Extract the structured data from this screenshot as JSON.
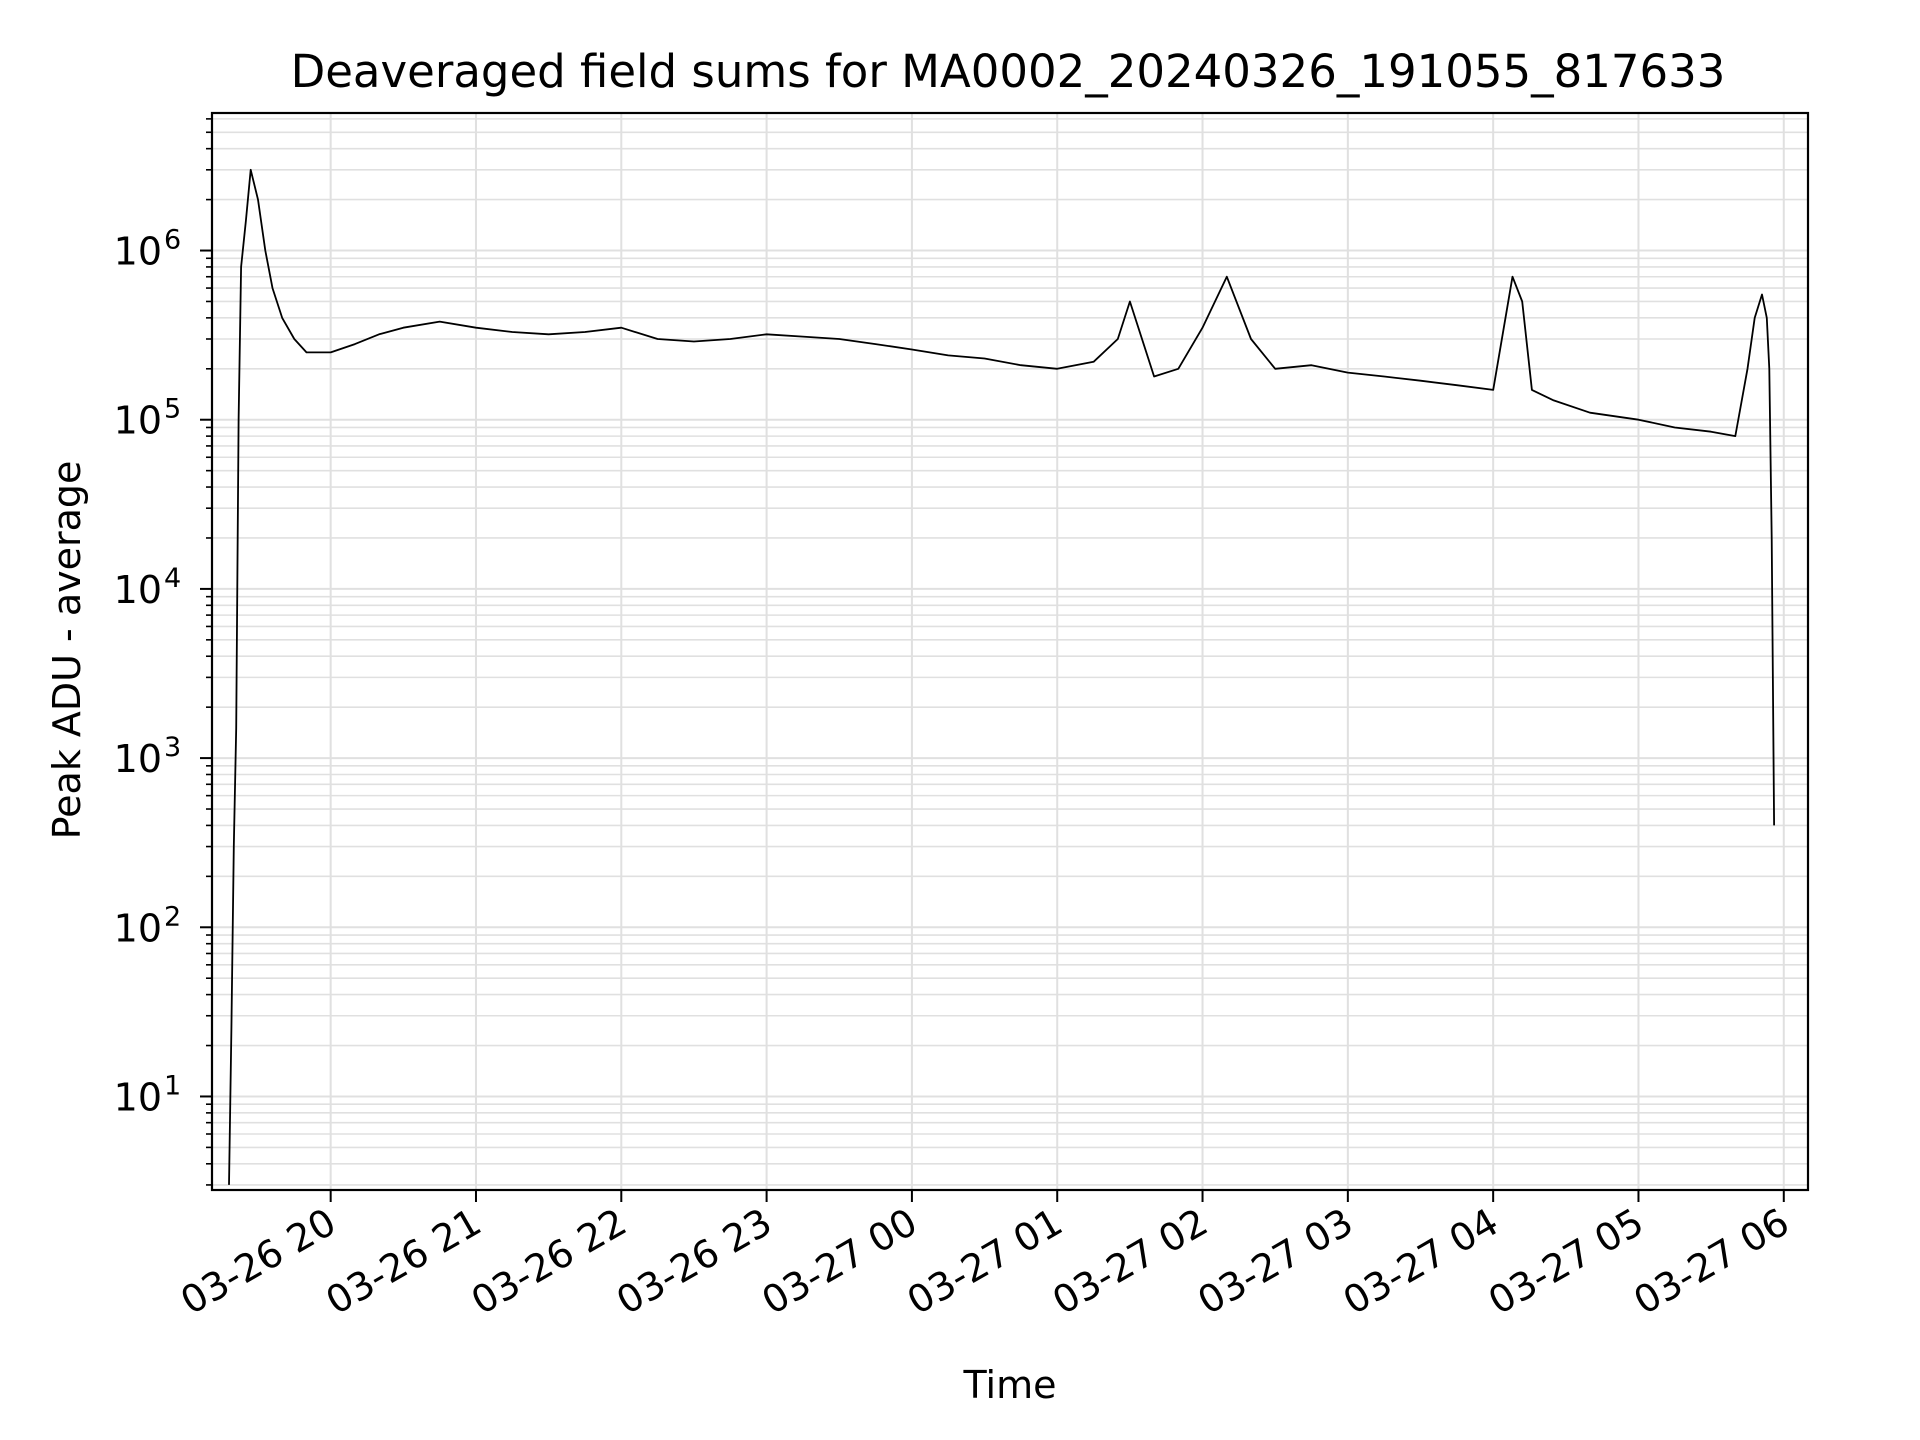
{
  "chart_data": {
    "type": "line",
    "title": "Deaveraged field sums for MA0002_20240326_191055_817633",
    "xlabel": "Time",
    "ylabel": "Peak ADU - average",
    "x_scale": "time",
    "y_scale": "log",
    "xlim": [
      "2024-03-26 19:11",
      "2024-03-27 06:10"
    ],
    "ylim": [
      2.8,
      6500000
    ],
    "x_ticks": [
      "03-26 20",
      "03-26 21",
      "03-26 22",
      "03-26 23",
      "03-27 00",
      "03-27 01",
      "03-27 02",
      "03-27 03",
      "03-27 04",
      "03-27 05",
      "03-27 06"
    ],
    "y_ticks": [
      {
        "base": "10",
        "exp": "1"
      },
      {
        "base": "10",
        "exp": "2"
      },
      {
        "base": "10",
        "exp": "3"
      },
      {
        "base": "10",
        "exp": "4"
      },
      {
        "base": "10",
        "exp": "5"
      },
      {
        "base": "10",
        "exp": "6"
      }
    ],
    "grid": true,
    "line_color": "#000000",
    "grid_color": "#e0e0e0",
    "series": [
      {
        "x": [
          "2024-03-26 19:18",
          "2024-03-26 19:19",
          "2024-03-26 19:20",
          "2024-03-26 19:21",
          "2024-03-26 19:22",
          "2024-03-26 19:23",
          "2024-03-26 19:25",
          "2024-03-26 19:27",
          "2024-03-26 19:30",
          "2024-03-26 19:33",
          "2024-03-26 19:36",
          "2024-03-26 19:40",
          "2024-03-26 19:45",
          "2024-03-26 19:50",
          "2024-03-26 20:00",
          "2024-03-26 20:10",
          "2024-03-26 20:20",
          "2024-03-26 20:30",
          "2024-03-26 20:45",
          "2024-03-26 21:00",
          "2024-03-26 21:15",
          "2024-03-26 21:30",
          "2024-03-26 21:45",
          "2024-03-26 22:00",
          "2024-03-26 22:15",
          "2024-03-26 22:30",
          "2024-03-26 22:45",
          "2024-03-26 23:00",
          "2024-03-26 23:15",
          "2024-03-26 23:30",
          "2024-03-26 23:45",
          "2024-03-27 00:00",
          "2024-03-27 00:15",
          "2024-03-27 00:30",
          "2024-03-27 00:45",
          "2024-03-27 01:00",
          "2024-03-27 01:15",
          "2024-03-27 01:25",
          "2024-03-27 01:30",
          "2024-03-27 01:40",
          "2024-03-27 01:50",
          "2024-03-27 02:00",
          "2024-03-27 02:10",
          "2024-03-27 02:20",
          "2024-03-27 02:30",
          "2024-03-27 02:45",
          "2024-03-27 03:00",
          "2024-03-27 03:15",
          "2024-03-27 03:30",
          "2024-03-27 03:45",
          "2024-03-27 04:00",
          "2024-03-27 04:08",
          "2024-03-27 04:12",
          "2024-03-27 04:16",
          "2024-03-27 04:25",
          "2024-03-27 04:40",
          "2024-03-27 05:00",
          "2024-03-27 05:15",
          "2024-03-27 05:30",
          "2024-03-27 05:40",
          "2024-03-27 05:45",
          "2024-03-27 05:48",
          "2024-03-27 05:51",
          "2024-03-27 05:53",
          "2024-03-27 05:54",
          "2024-03-27 05:55",
          "2024-03-27 05:56"
        ],
        "y": [
          3,
          25,
          300,
          1500,
          100000,
          800000,
          1500000,
          3000000,
          2000000,
          1000000,
          600000,
          400000,
          300000,
          250000,
          250000,
          280000,
          320000,
          350000,
          380000,
          350000,
          330000,
          320000,
          330000,
          350000,
          300000,
          290000,
          300000,
          320000,
          310000,
          300000,
          280000,
          260000,
          240000,
          230000,
          210000,
          200000,
          220000,
          300000,
          500000,
          180000,
          200000,
          350000,
          700000,
          300000,
          200000,
          210000,
          190000,
          180000,
          170000,
          160000,
          150000,
          700000,
          500000,
          150000,
          130000,
          110000,
          100000,
          90000,
          85000,
          80000,
          200000,
          400000,
          550000,
          400000,
          200000,
          20000,
          400
        ]
      }
    ]
  }
}
